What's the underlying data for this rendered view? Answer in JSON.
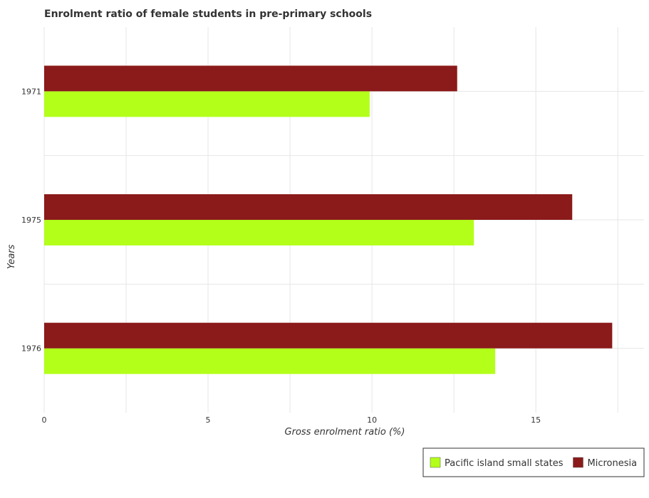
{
  "chart_data": {
    "type": "bar",
    "orientation": "horizontal",
    "title": "Enrolment ratio of female students in pre-primary schools",
    "xlabel": "Gross enrolment ratio (%)",
    "ylabel": "Years",
    "categories": [
      "1971",
      "1975",
      "1976"
    ],
    "series": [
      {
        "name": "Pacific island small states",
        "color": "#b3ff1a",
        "values": [
          9.93,
          13.11,
          13.76
        ]
      },
      {
        "name": "Micronesia",
        "color": "#8b1a1a",
        "values": [
          12.6,
          16.11,
          17.33
        ]
      }
    ],
    "xlim": [
      0,
      18.3
    ],
    "xticks": [
      0,
      5,
      10,
      15
    ],
    "grid": true,
    "legend_position": "bottom-right"
  }
}
